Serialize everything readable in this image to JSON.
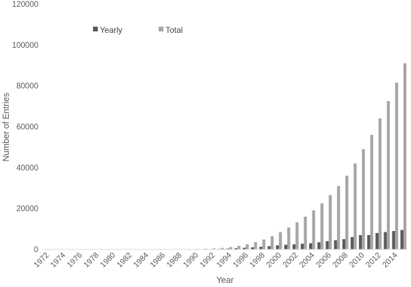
{
  "chart_data": {
    "type": "bar",
    "title": "",
    "xlabel": "Year",
    "ylabel": "Number of Entries",
    "ylim": [
      0,
      120000
    ],
    "yticks": [
      0,
      20000,
      40000,
      60000,
      80000,
      100000,
      120000
    ],
    "grid": false,
    "legend": {
      "placement": "top-left",
      "entries": [
        "Yearly",
        "Total"
      ]
    },
    "x": [
      1972,
      1973,
      1974,
      1975,
      1976,
      1977,
      1978,
      1979,
      1980,
      1981,
      1982,
      1983,
      1984,
      1985,
      1986,
      1987,
      1988,
      1989,
      1990,
      1991,
      1992,
      1993,
      1994,
      1995,
      1996,
      1997,
      1998,
      1999,
      2000,
      2001,
      2002,
      2003,
      2004,
      2005,
      2006,
      2007,
      2008,
      2009,
      2010,
      2011,
      2012,
      2013,
      2014,
      2015
    ],
    "xtick_labels": [
      "1972",
      "1974",
      "1976",
      "1978",
      "1980",
      "1982",
      "1984",
      "1986",
      "1988",
      "1990",
      "1992",
      "1994",
      "1996",
      "1998",
      "2000",
      "2002",
      "2004",
      "2006",
      "2008",
      "2010",
      "2012",
      "2014"
    ],
    "series": [
      {
        "name": "Yearly",
        "color": "#595959",
        "values": [
          1,
          1,
          3,
          3,
          3,
          4,
          5,
          8,
          10,
          12,
          10,
          11,
          12,
          14,
          20,
          25,
          27,
          40,
          60,
          80,
          150,
          250,
          400,
          600,
          800,
          1000,
          1300,
          1600,
          2000,
          2300,
          2500,
          2800,
          3000,
          3500,
          4000,
          4500,
          5000,
          6000,
          7000,
          7000,
          8000,
          8500,
          9000,
          9500
        ]
      },
      {
        "name": "Total",
        "color": "#a6a6a6",
        "values": [
          1,
          2,
          5,
          8,
          11,
          15,
          20,
          28,
          38,
          50,
          60,
          71,
          83,
          97,
          117,
          142,
          169,
          209,
          269,
          350,
          500,
          750,
          1150,
          1750,
          2550,
          3550,
          4850,
          6450,
          8450,
          10750,
          13250,
          16050,
          19050,
          22550,
          26550,
          31050,
          36050,
          42050,
          49050,
          56050,
          64050,
          72550,
          81550,
          91050
        ]
      }
    ]
  }
}
